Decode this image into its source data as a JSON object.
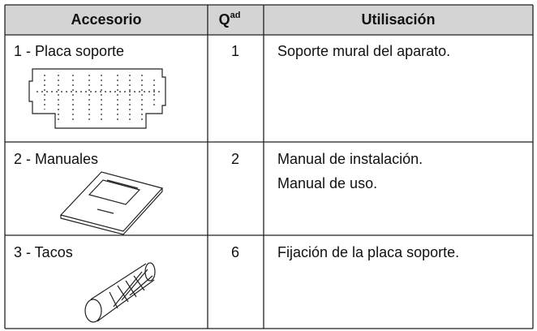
{
  "table": {
    "header": [
      "Accesorio",
      {
        "text": "Q",
        "sup": "ad"
      },
      "Utilisación"
    ],
    "rows": [
      [
        "1 - Placa soporte",
        "1",
        [
          "Soporte mural del aparato."
        ]
      ],
      [
        "2 - Manuales",
        "2",
        [
          "Manual de instalación.",
          "Manual de uso."
        ]
      ],
      [
        "3 - Tacos",
        "6",
        [
          "Fijación de la placa soporte."
        ]
      ]
    ]
  }
}
